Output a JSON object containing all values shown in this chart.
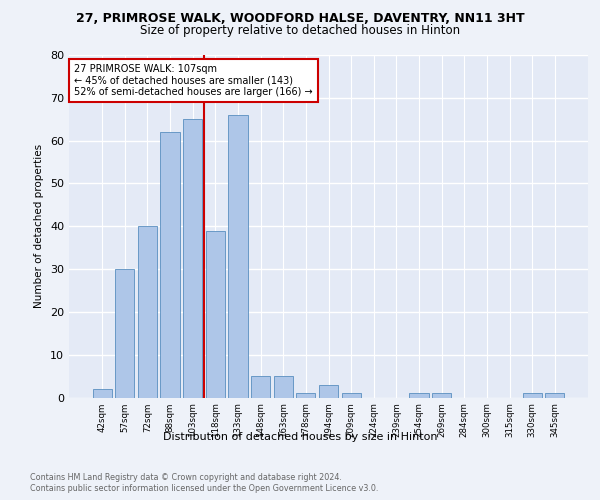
{
  "title1": "27, PRIMROSE WALK, WOODFORD HALSE, DAVENTRY, NN11 3HT",
  "title2": "Size of property relative to detached houses in Hinton",
  "xlabel": "Distribution of detached houses by size in Hinton",
  "ylabel": "Number of detached properties",
  "footer1": "Contains HM Land Registry data © Crown copyright and database right 2024.",
  "footer2": "Contains public sector information licensed under the Open Government Licence v3.0.",
  "annotation_line1": "27 PRIMROSE WALK: 107sqm",
  "annotation_line2": "← 45% of detached houses are smaller (143)",
  "annotation_line3": "52% of semi-detached houses are larger (166) →",
  "bar_labels": [
    "42sqm",
    "57sqm",
    "72sqm",
    "88sqm",
    "103sqm",
    "118sqm",
    "133sqm",
    "148sqm",
    "163sqm",
    "178sqm",
    "194sqm",
    "209sqm",
    "224sqm",
    "239sqm",
    "254sqm",
    "269sqm",
    "284sqm",
    "300sqm",
    "315sqm",
    "330sqm",
    "345sqm"
  ],
  "bar_values": [
    2,
    30,
    40,
    62,
    65,
    39,
    66,
    5,
    5,
    1,
    3,
    1,
    0,
    0,
    1,
    1,
    0,
    0,
    0,
    1,
    1
  ],
  "bar_color": "#aec6e8",
  "bar_edge_color": "#5a8fc0",
  "vline_color": "#cc0000",
  "vline_x": 4.5,
  "annotation_box_color": "#cc0000",
  "background_color": "#eef2f9",
  "plot_bg_color": "#e4eaf6",
  "grid_color": "#ffffff",
  "ylim": [
    0,
    80
  ],
  "yticks": [
    0,
    10,
    20,
    30,
    40,
    50,
    60,
    70,
    80
  ]
}
